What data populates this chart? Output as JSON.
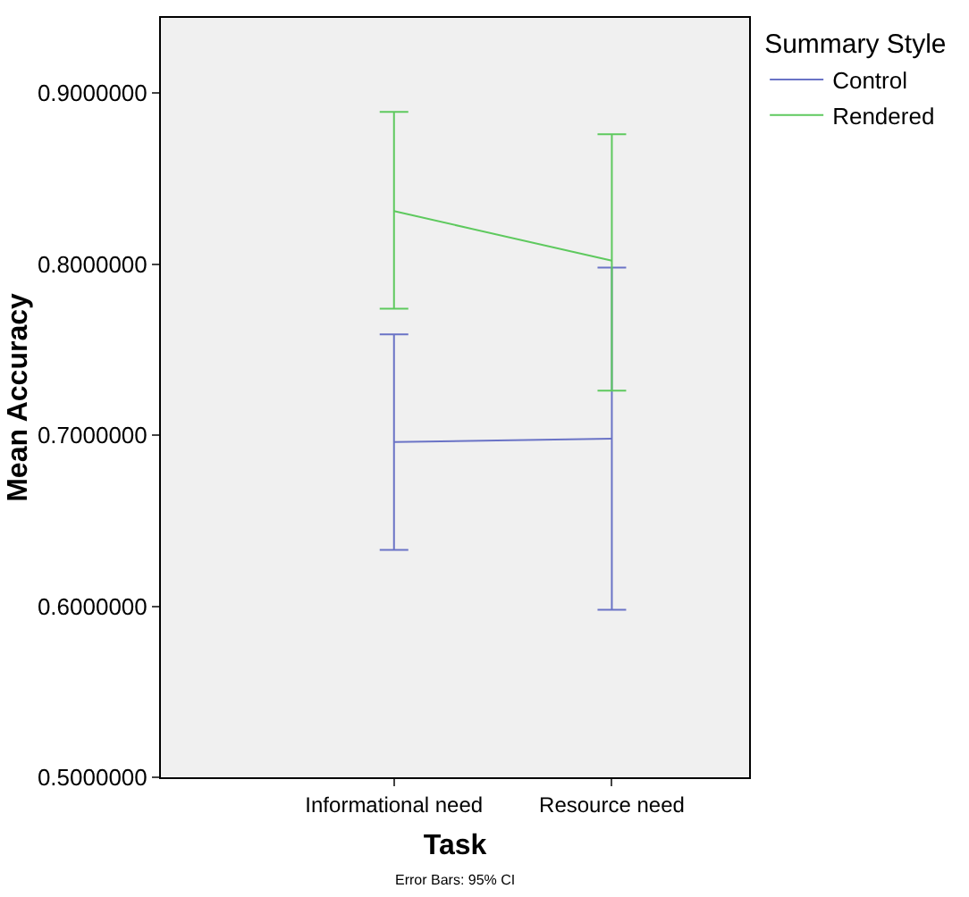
{
  "chart_data": {
    "type": "line",
    "xlabel": "Task",
    "ylabel": "Mean Accuracy",
    "legend_title": "Summary Style",
    "categories": [
      "Informational need",
      "Resource need"
    ],
    "series": [
      {
        "name": "Control",
        "color": "#6a73c6",
        "values": [
          0.696,
          0.698
        ],
        "errors": [
          [
            0.633,
            0.759
          ],
          [
            0.598,
            0.798
          ]
        ]
      },
      {
        "name": "Rendered",
        "color": "#5ec95e",
        "values": [
          0.831,
          0.802
        ],
        "errors": [
          [
            0.774,
            0.889
          ],
          [
            0.726,
            0.876
          ]
        ]
      }
    ],
    "ylim": [
      0.5,
      0.944
    ],
    "yticks": [
      {
        "value": 0.5,
        "label": "0.5000000"
      },
      {
        "value": 0.6,
        "label": "0.6000000"
      },
      {
        "value": 0.7,
        "label": "0.7000000"
      },
      {
        "value": 0.8,
        "label": "0.8000000"
      },
      {
        "value": 0.9,
        "label": "0.9000000"
      }
    ],
    "grid": false,
    "legend": "top right",
    "marker": "none",
    "line_style": "solid",
    "annotations": [
      "Error Bars: 95% CI"
    ]
  }
}
